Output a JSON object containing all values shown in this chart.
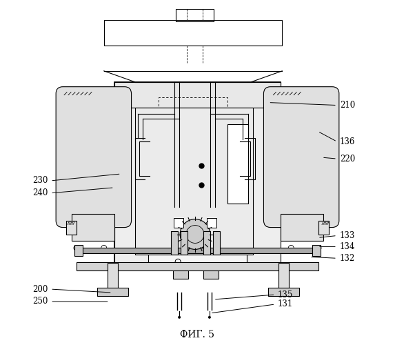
{
  "title": "ФИГ. 5",
  "background_color": "#ffffff",
  "line_color": "#000000",
  "gray_light": "#e8e8e8",
  "gray_mid": "#d0d0d0",
  "gray_dark": "#b0b0b0"
}
